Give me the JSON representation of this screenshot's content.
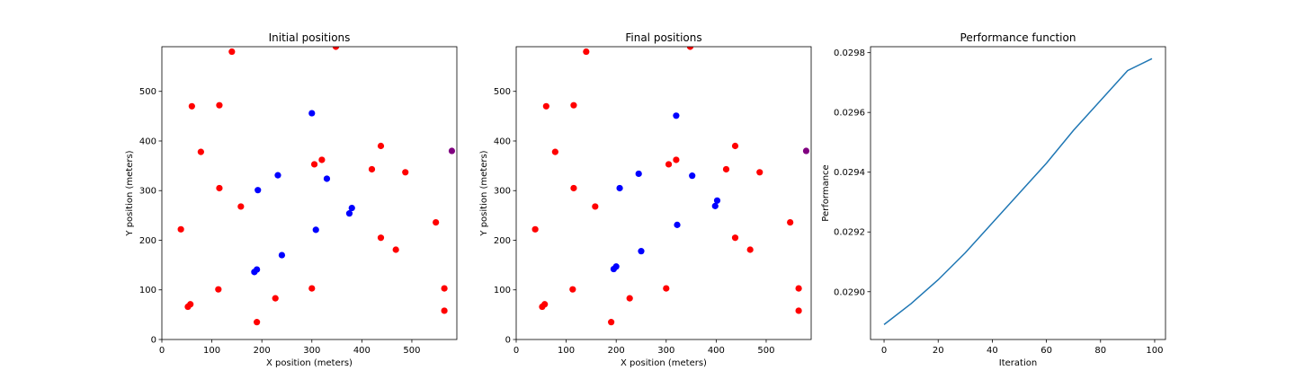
{
  "chart_data": [
    {
      "type": "scatter",
      "title": "Initial positions",
      "xlabel": "X position (meters)",
      "ylabel": "Y position (meters)",
      "xlim": [
        0,
        590
      ],
      "ylim": [
        0,
        590
      ],
      "xticks": [
        0,
        100,
        200,
        300,
        400,
        500
      ],
      "yticks": [
        0,
        100,
        200,
        300,
        400,
        500
      ],
      "grid": false,
      "series": [
        {
          "color": "#ff0000",
          "points": [
            [
              140,
              580
            ],
            [
              348,
              590
            ],
            [
              60,
              470
            ],
            [
              115,
              472
            ],
            [
              78,
              378
            ],
            [
              438,
              390
            ],
            [
              320,
              362
            ],
            [
              305,
              353
            ],
            [
              420,
              343
            ],
            [
              487,
              337
            ],
            [
              115,
              305
            ],
            [
              158,
              268
            ],
            [
              38,
              222
            ],
            [
              548,
              236
            ],
            [
              438,
              205
            ],
            [
              468,
              181
            ],
            [
              113,
              101
            ],
            [
              300,
              103
            ],
            [
              565,
              103
            ],
            [
              227,
              83
            ],
            [
              57,
              71
            ],
            [
              52,
              66
            ],
            [
              565,
              58
            ],
            [
              190,
              35
            ]
          ]
        },
        {
          "color": "#0000ff",
          "points": [
            [
              300,
              456
            ],
            [
              232,
              331
            ],
            [
              330,
              324
            ],
            [
              192,
              301
            ],
            [
              380,
              265
            ],
            [
              375,
              254
            ],
            [
              308,
              221
            ],
            [
              240,
              170
            ],
            [
              190,
              141
            ],
            [
              185,
              136
            ]
          ]
        },
        {
          "color": "#800080",
          "points": [
            [
              580,
              380
            ]
          ]
        }
      ]
    },
    {
      "type": "scatter",
      "title": "Final positions",
      "xlabel": "X position (meters)",
      "ylabel": "Y position (meters)",
      "xlim": [
        0,
        590
      ],
      "ylim": [
        0,
        590
      ],
      "xticks": [
        0,
        100,
        200,
        300,
        400,
        500
      ],
      "yticks": [
        0,
        100,
        200,
        300,
        400,
        500
      ],
      "grid": false,
      "series": [
        {
          "color": "#ff0000",
          "points": [
            [
              140,
              580
            ],
            [
              348,
              590
            ],
            [
              60,
              470
            ],
            [
              115,
              472
            ],
            [
              78,
              378
            ],
            [
              438,
              390
            ],
            [
              320,
              362
            ],
            [
              305,
              353
            ],
            [
              420,
              343
            ],
            [
              487,
              337
            ],
            [
              115,
              305
            ],
            [
              158,
              268
            ],
            [
              38,
              222
            ],
            [
              548,
              236
            ],
            [
              438,
              205
            ],
            [
              468,
              181
            ],
            [
              113,
              101
            ],
            [
              300,
              103
            ],
            [
              565,
              103
            ],
            [
              227,
              83
            ],
            [
              57,
              71
            ],
            [
              52,
              66
            ],
            [
              565,
              58
            ],
            [
              190,
              35
            ]
          ]
        },
        {
          "color": "#0000ff",
          "points": [
            [
              320,
              451
            ],
            [
              245,
              334
            ],
            [
              352,
              330
            ],
            [
              207,
              305
            ],
            [
              402,
              280
            ],
            [
              398,
              269
            ],
            [
              322,
              231
            ],
            [
              250,
              178
            ],
            [
              200,
              147
            ],
            [
              195,
              142
            ]
          ]
        },
        {
          "color": "#800080",
          "points": [
            [
              580,
              380
            ]
          ]
        }
      ]
    },
    {
      "type": "line",
      "title": "Performance function",
      "xlabel": "Iteration",
      "ylabel": "Performance",
      "xlim": [
        -5,
        104
      ],
      "ylim": [
        0.02884,
        0.02982
      ],
      "xticks": [
        0,
        20,
        40,
        60,
        80,
        100
      ],
      "yticks": [
        0.029,
        0.0292,
        0.0294,
        0.0296,
        0.0298
      ],
      "ytick_labels": [
        "0.0290",
        "0.0292",
        "0.0294",
        "0.0296",
        "0.0298"
      ],
      "grid": false,
      "series": [
        {
          "color": "#1f77b4",
          "x": [
            0,
            10,
            20,
            30,
            40,
            50,
            60,
            70,
            80,
            90,
            99
          ],
          "y": [
            0.02889,
            0.02896,
            0.02904,
            0.02913,
            0.02923,
            0.02933,
            0.02943,
            0.02954,
            0.02964,
            0.02974,
            0.02978
          ]
        }
      ]
    }
  ]
}
